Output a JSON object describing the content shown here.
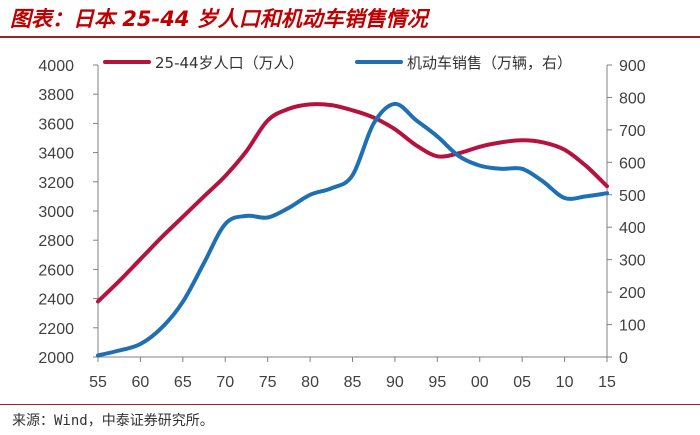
{
  "header": {
    "title": "图表：日本 25-44 岁人口和机动车销售情况"
  },
  "footer": {
    "source": "来源：Wind，中泰证券研究所。"
  },
  "chart_data": {
    "type": "line",
    "title": "",
    "grid": false,
    "legend_position": "top",
    "x": {
      "ticks": [
        "55",
        "60",
        "65",
        "70",
        "75",
        "80",
        "85",
        "90",
        "95",
        "00",
        "05",
        "10",
        "15"
      ],
      "range": [
        0,
        12
      ]
    },
    "y_left": {
      "range": [
        2000,
        4000
      ],
      "ticks": [
        2000,
        2200,
        2400,
        2600,
        2800,
        3000,
        3200,
        3400,
        3600,
        3800,
        4000
      ]
    },
    "y_right": {
      "range": [
        0,
        900
      ],
      "ticks": [
        0,
        100,
        200,
        300,
        400,
        500,
        600,
        700,
        800,
        900
      ]
    },
    "series": [
      {
        "name": "25-44岁人口（万人）",
        "axis": "left",
        "color": "#b5123f",
        "x": [
          0,
          0.5,
          1,
          1.5,
          2,
          2.5,
          3,
          3.5,
          4,
          4.5,
          5,
          5.5,
          6,
          6.5,
          7,
          7.5,
          8,
          8.5,
          9,
          9.5,
          10,
          10.5,
          11,
          11.5,
          12
        ],
        "values": [
          2380,
          2520,
          2670,
          2820,
          2960,
          3100,
          3240,
          3410,
          3620,
          3700,
          3730,
          3725,
          3690,
          3640,
          3560,
          3450,
          3375,
          3395,
          3440,
          3470,
          3485,
          3470,
          3420,
          3310,
          3170
        ]
      },
      {
        "name": "机动车销售（万辆，右）",
        "axis": "right",
        "color": "#1f6fb5",
        "x": [
          0,
          0.5,
          1,
          1.5,
          2,
          2.5,
          3,
          3.5,
          4,
          4.5,
          5,
          5.5,
          6,
          6.5,
          7,
          7.5,
          8,
          8.5,
          9,
          9.5,
          10,
          10.5,
          11,
          11.5,
          12
        ],
        "values": [
          5,
          20,
          40,
          90,
          170,
          290,
          410,
          435,
          430,
          460,
          500,
          520,
          560,
          720,
          780,
          730,
          680,
          620,
          590,
          580,
          580,
          540,
          490,
          495,
          505
        ]
      }
    ]
  }
}
